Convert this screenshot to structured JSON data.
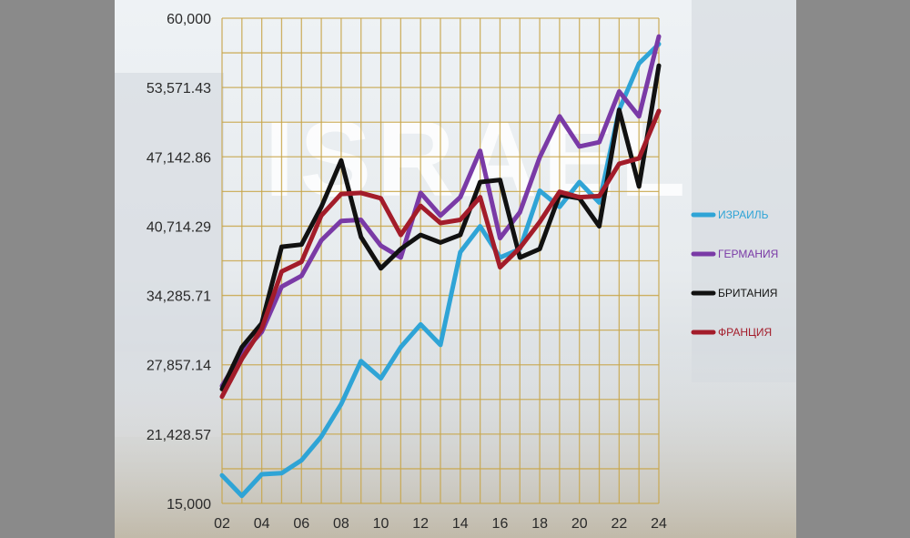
{
  "chart_data": {
    "type": "line",
    "title": "",
    "xlabel": "",
    "ylabel": "",
    "watermark_text": "ISRAEL",
    "ylim": [
      15000,
      60000
    ],
    "yticks": [
      "15,000",
      "21,428.57",
      "27,857.14",
      "34,285.71",
      "40,714.29",
      "47,142.86",
      "53,571.43",
      "60,000"
    ],
    "ytick_values": [
      15000,
      21428.57,
      27857.14,
      34285.71,
      40714.29,
      47142.86,
      53571.43,
      60000
    ],
    "x_years": [
      2002,
      2003,
      2004,
      2005,
      2006,
      2007,
      2008,
      2009,
      2010,
      2011,
      2012,
      2013,
      2014,
      2015,
      2016,
      2017,
      2018,
      2019,
      2020,
      2021,
      2022,
      2023,
      2024
    ],
    "xticks": [
      "02",
      "04",
      "06",
      "08",
      "10",
      "12",
      "14",
      "16",
      "18",
      "20",
      "22",
      "24"
    ],
    "xtick_years": [
      2002,
      2004,
      2006,
      2008,
      2010,
      2012,
      2014,
      2016,
      2018,
      2020,
      2022,
      2024
    ],
    "grid": true,
    "legend_position": "right",
    "series": [
      {
        "name": "ИЗРАИЛЬ",
        "color": "#2fa4d6",
        "values": [
          17600,
          15700,
          17700,
          17800,
          19000,
          21200,
          24200,
          28200,
          26600,
          29500,
          31600,
          29700,
          38300,
          40700,
          37800,
          38600,
          44000,
          42500,
          44800,
          42900,
          51500,
          55800,
          57600
        ]
      },
      {
        "name": "ГЕРМАНИЯ",
        "color": "#7a3aa6",
        "values": [
          25900,
          28900,
          30900,
          35100,
          36100,
          39400,
          41200,
          41300,
          38900,
          37800,
          43800,
          41700,
          43400,
          47700,
          39600,
          42000,
          47100,
          50900,
          48100,
          48500,
          53200,
          50900,
          58300
        ]
      },
      {
        "name": "БРИТАНИЯ",
        "color": "#111111",
        "values": [
          25600,
          29500,
          31700,
          38800,
          39000,
          42500,
          46800,
          39700,
          36800,
          38600,
          39900,
          39200,
          39900,
          44800,
          45000,
          37800,
          38600,
          43600,
          43300,
          40700,
          51500,
          44400,
          55600
        ]
      },
      {
        "name": "ФРАНЦИЯ",
        "color": "#a31c2a",
        "values": [
          24900,
          28400,
          31200,
          36500,
          37400,
          41700,
          43700,
          43800,
          43300,
          39900,
          42600,
          41000,
          41300,
          43400,
          36900,
          38700,
          41100,
          43900,
          43400,
          43500,
          46500,
          47000,
          51400
        ]
      }
    ]
  }
}
